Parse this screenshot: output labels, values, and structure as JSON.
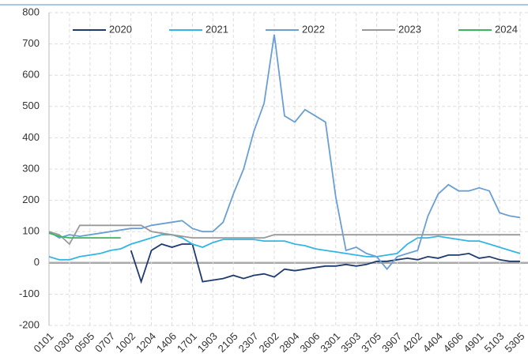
{
  "chart_data": {
    "type": "line",
    "categories": [
      "0101",
      null,
      "0303",
      null,
      "0505",
      null,
      "0707",
      null,
      "1002",
      null,
      "1204",
      null,
      "1406",
      null,
      "1701",
      null,
      "1903",
      null,
      "2105",
      null,
      "2307",
      null,
      "2602",
      null,
      "2804",
      null,
      "3006",
      null,
      "3301",
      null,
      "3503",
      null,
      "3705",
      null,
      "3907",
      null,
      "4202",
      null,
      "4404",
      null,
      "4606",
      null,
      "4901",
      null,
      "5103",
      null,
      "5305"
    ],
    "series": [
      {
        "name": "2020",
        "color": "#1f3a6e",
        "values": [
          null,
          null,
          null,
          null,
          null,
          null,
          null,
          null,
          40,
          -60,
          40,
          60,
          50,
          60,
          60,
          -60,
          -55,
          -50,
          -40,
          -50,
          -40,
          -35,
          -45,
          -20,
          -25,
          -20,
          -15,
          -10,
          -10,
          -5,
          -10,
          -5,
          5,
          5,
          10,
          15,
          10,
          20,
          15,
          25,
          25,
          30,
          15,
          20,
          10,
          5,
          5
        ]
      },
      {
        "name": "2021",
        "color": "#33b5e5",
        "values": [
          20,
          10,
          10,
          20,
          25,
          30,
          40,
          45,
          60,
          70,
          80,
          90,
          90,
          80,
          60,
          50,
          65,
          75,
          75,
          75,
          75,
          70,
          70,
          70,
          60,
          55,
          45,
          40,
          35,
          30,
          25,
          20,
          20,
          25,
          30,
          60,
          80,
          80,
          85,
          80,
          75,
          70,
          70,
          60,
          50,
          40,
          30
        ]
      },
      {
        "name": "2022",
        "color": "#6a9fd4",
        "values": [
          100,
          80,
          90,
          85,
          90,
          95,
          100,
          105,
          110,
          110,
          120,
          125,
          130,
          135,
          110,
          100,
          100,
          130,
          220,
          300,
          420,
          510,
          730,
          470,
          450,
          490,
          470,
          450,
          210,
          40,
          50,
          30,
          20,
          -20,
          20,
          30,
          40,
          150,
          220,
          250,
          230,
          230,
          240,
          230,
          160,
          150,
          145
        ]
      },
      {
        "name": "2023",
        "color": "#999999",
        "values": [
          100,
          90,
          60,
          120,
          120,
          120,
          120,
          120,
          120,
          120,
          100,
          95,
          90,
          85,
          80,
          80,
          80,
          80,
          80,
          80,
          80,
          80,
          90,
          90,
          90,
          90,
          90,
          90,
          90,
          90,
          90,
          90,
          90,
          90,
          90,
          90,
          90,
          90,
          90,
          90,
          90,
          90,
          90,
          90,
          90,
          90,
          90
        ]
      },
      {
        "name": "2024",
        "color": "#3cb55a",
        "values": [
          95,
          85,
          80,
          80,
          80,
          80,
          80,
          80,
          null,
          null,
          null,
          null,
          null,
          null,
          null,
          null,
          null,
          null,
          null,
          null,
          null,
          null,
          null,
          null,
          null,
          null,
          null,
          null,
          null,
          null,
          null,
          null,
          null,
          null,
          null,
          null,
          null,
          null,
          null,
          null,
          null,
          null,
          null,
          null,
          null,
          null,
          null
        ]
      }
    ],
    "ylim": [
      -200,
      800
    ],
    "yticks": [
      -200,
      -100,
      0,
      100,
      200,
      300,
      400,
      500,
      600,
      700,
      800
    ],
    "grid": true
  }
}
